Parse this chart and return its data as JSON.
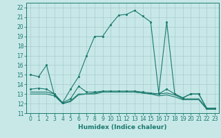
{
  "xlabel": "Humidex (Indice chaleur)",
  "xlim": [
    -0.5,
    23.5
  ],
  "ylim": [
    11,
    22.5
  ],
  "yticks": [
    11,
    12,
    13,
    14,
    15,
    16,
    17,
    18,
    19,
    20,
    21,
    22
  ],
  "xticks": [
    0,
    1,
    2,
    3,
    4,
    5,
    6,
    7,
    8,
    9,
    10,
    11,
    12,
    13,
    14,
    15,
    16,
    17,
    18,
    19,
    20,
    21,
    22,
    23
  ],
  "background_color": "#c8e8e8",
  "line_color": "#1a7a6e",
  "grid_color": "#a8cccc",
  "line1_x": [
    0,
    1,
    2,
    3,
    4,
    5,
    6,
    7,
    8,
    9,
    10,
    11,
    12,
    13,
    14,
    15,
    16,
    17,
    18,
    19,
    20,
    21,
    22,
    23
  ],
  "line1_y": [
    15.0,
    14.8,
    16.0,
    12.8,
    12.1,
    13.5,
    14.8,
    17.0,
    19.0,
    19.0,
    20.2,
    21.2,
    21.3,
    21.7,
    21.1,
    20.5,
    13.1,
    20.5,
    13.0,
    12.6,
    13.0,
    13.0,
    11.5,
    11.5
  ],
  "line2_x": [
    0,
    1,
    2,
    3,
    4,
    5,
    6,
    7,
    8,
    9,
    10,
    11,
    12,
    13,
    14,
    15,
    16,
    17,
    18,
    19,
    20,
    21,
    22,
    23
  ],
  "line2_y": [
    13.5,
    13.6,
    13.5,
    13.0,
    12.1,
    12.5,
    13.8,
    13.2,
    13.2,
    13.3,
    13.3,
    13.3,
    13.3,
    13.3,
    13.2,
    13.1,
    13.0,
    13.5,
    13.0,
    12.6,
    13.0,
    13.0,
    11.5,
    11.5
  ],
  "line3_x": [
    0,
    1,
    2,
    3,
    4,
    5,
    6,
    7,
    8,
    9,
    10,
    11,
    12,
    13,
    14,
    15,
    16,
    17,
    18,
    19,
    20,
    21,
    22,
    23
  ],
  "line3_y": [
    13.2,
    13.2,
    13.2,
    13.0,
    12.0,
    12.3,
    13.0,
    13.0,
    13.1,
    13.2,
    13.2,
    13.2,
    13.2,
    13.2,
    13.1,
    13.0,
    13.0,
    13.1,
    12.9,
    12.5,
    12.5,
    12.5,
    11.5,
    11.5
  ],
  "line4_x": [
    0,
    1,
    2,
    3,
    4,
    5,
    6,
    7,
    8,
    9,
    10,
    11,
    12,
    13,
    14,
    15,
    16,
    17,
    18,
    19,
    20,
    21,
    22,
    23
  ],
  "line4_y": [
    13.0,
    13.0,
    13.0,
    12.8,
    12.0,
    12.2,
    12.9,
    13.0,
    13.0,
    13.2,
    13.2,
    13.2,
    13.2,
    13.2,
    13.1,
    13.0,
    12.8,
    12.9,
    12.7,
    12.4,
    12.4,
    12.4,
    11.4,
    11.4
  ]
}
